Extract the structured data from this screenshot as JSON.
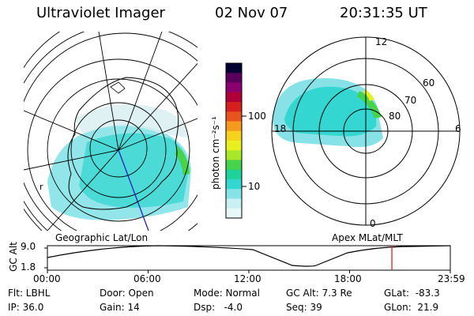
{
  "header": {
    "title": "Ultraviolet Imager",
    "date": "02 Nov 07",
    "time": "20:31:35 UT"
  },
  "colorbar": {
    "unit_label": "photon cm⁻²s⁻¹",
    "ticks": [
      "100",
      "10"
    ],
    "colors": [
      "#000033",
      "#5a005a",
      "#8a006e",
      "#b0003a",
      "#d62020",
      "#e8541e",
      "#f59a1e",
      "#f5d21e",
      "#e8f020",
      "#a8e82a",
      "#46d24a",
      "#1ed29a",
      "#33d6d0",
      "#86e2e6",
      "#c8f0f2",
      "#e8f7f8"
    ]
  },
  "left_panel": {
    "label": "Geographic Lat/Lon",
    "coord_label": "r"
  },
  "right_panel": {
    "label": "Apex MLat/MLT",
    "lat_labels": [
      "60",
      "70",
      "80"
    ],
    "mlt_labels": {
      "top": "12",
      "left": "18",
      "right": "6",
      "bottom": "0"
    }
  },
  "timeline": {
    "ylabel": "GC Alt",
    "ytick_top": "9.0",
    "ytick_bottom": "1.8",
    "xticks": [
      "00:00",
      "06:00",
      "12:00",
      "18:00",
      "23:59"
    ],
    "current_fraction": 0.855,
    "marker_color": "#e02020"
  },
  "status": {
    "flt": "Flt: LBHL",
    "ip": "IP: 36.0",
    "door": "Door: Open",
    "gain": "Gain: 14",
    "mode": "Mode: Normal",
    "dsp": "Dsp:   -4.0",
    "gcalt": "GC Alt: 7.3 Re",
    "seq": "Seq: 39",
    "glat": "GLat:  -83.3",
    "glon": "GLon:  21.9"
  }
}
